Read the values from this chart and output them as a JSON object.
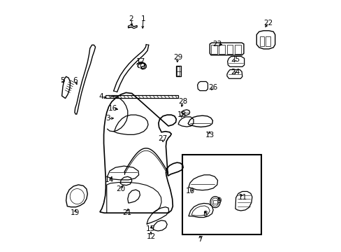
{
  "background_color": "#ffffff",
  "line_color": "#000000",
  "figsize": [
    4.89,
    3.6
  ],
  "dpi": 100,
  "labels": [
    [
      1,
      0.388,
      0.935,
      0.385,
      0.885
    ],
    [
      2,
      0.34,
      0.935,
      0.342,
      0.895
    ],
    [
      3,
      0.245,
      0.53,
      0.278,
      0.532
    ],
    [
      4,
      0.218,
      0.618,
      0.248,
      0.612
    ],
    [
      5,
      0.06,
      0.685,
      0.072,
      0.668
    ],
    [
      6,
      0.113,
      0.685,
      0.122,
      0.658
    ],
    [
      7,
      0.618,
      0.042,
      0.62,
      0.065
    ],
    [
      8,
      0.64,
      0.142,
      0.64,
      0.165
    ],
    [
      9,
      0.695,
      0.198,
      0.695,
      0.222
    ],
    [
      10,
      0.58,
      0.235,
      0.598,
      0.248
    ],
    [
      11,
      0.792,
      0.212,
      0.778,
      0.232
    ],
    [
      12,
      0.42,
      0.052,
      0.418,
      0.082
    ],
    [
      13,
      0.658,
      0.462,
      0.655,
      0.488
    ],
    [
      14,
      0.25,
      0.282,
      0.268,
      0.298
    ],
    [
      15,
      0.418,
      0.082,
      0.428,
      0.102
    ],
    [
      16,
      0.265,
      0.572,
      0.295,
      0.565
    ],
    [
      17,
      0.378,
      0.762,
      0.38,
      0.742
    ],
    [
      18,
      0.545,
      0.545,
      0.54,
      0.525
    ],
    [
      19,
      0.112,
      0.148,
      0.115,
      0.172
    ],
    [
      20,
      0.298,
      0.245,
      0.308,
      0.268
    ],
    [
      21,
      0.322,
      0.148,
      0.33,
      0.175
    ],
    [
      22,
      0.895,
      0.918,
      0.878,
      0.892
    ],
    [
      23,
      0.688,
      0.832,
      0.718,
      0.828
    ],
    [
      24,
      0.762,
      0.718,
      0.758,
      0.702
    ],
    [
      25,
      0.762,
      0.768,
      0.752,
      0.752
    ],
    [
      26,
      0.672,
      0.655,
      0.658,
      0.638
    ],
    [
      27,
      0.468,
      0.448,
      0.468,
      0.425
    ],
    [
      28,
      0.548,
      0.598,
      0.542,
      0.568
    ],
    [
      29,
      0.528,
      0.778,
      0.525,
      0.748
    ]
  ]
}
